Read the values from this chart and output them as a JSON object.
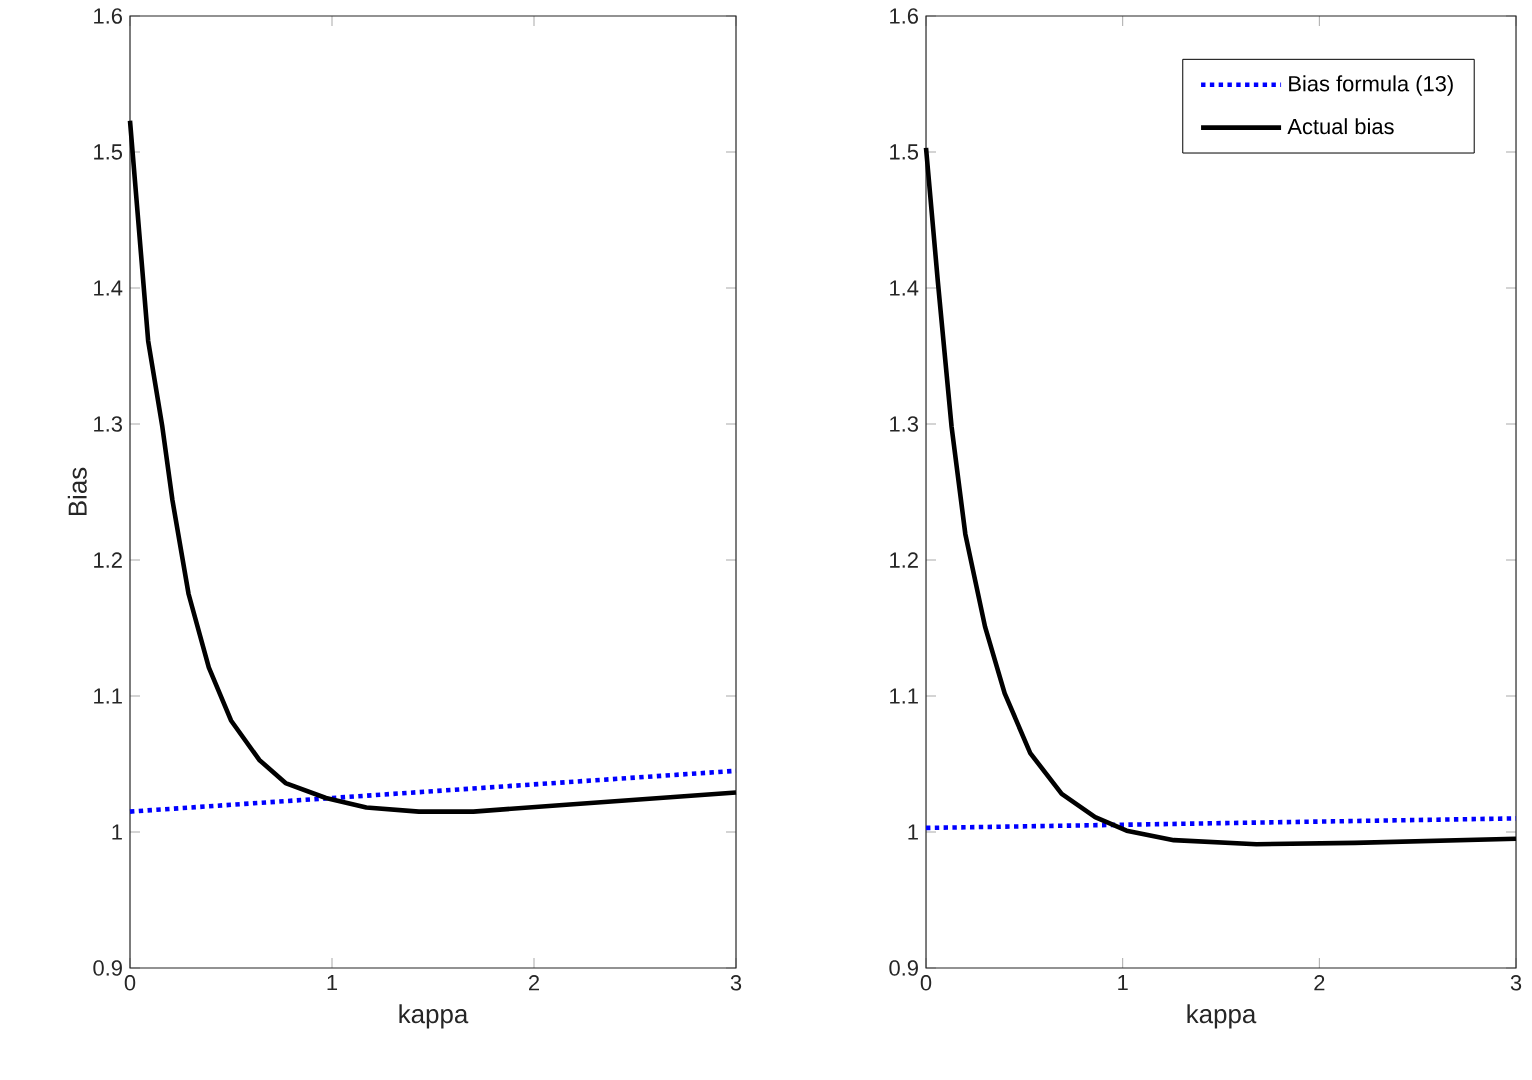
{
  "chart_data": [
    {
      "type": "line",
      "xlabel": "kappa",
      "ylabel": "Bias",
      "xlim": [
        0,
        3
      ],
      "ylim": [
        0.9,
        1.6
      ],
      "xticks": [
        0,
        1,
        2,
        3
      ],
      "yticks": [
        0.9,
        1,
        1.1,
        1.2,
        1.3,
        1.4,
        1.5,
        1.6
      ],
      "grid": false,
      "legend": false,
      "series": [
        {
          "color": "#0000ff",
          "line_style": "dotted",
          "x": [
            0,
            3
          ],
          "values": [
            1.015,
            1.045
          ]
        },
        {
          "color": "#000000",
          "line_style": "solid",
          "x": [
            0,
            0.09,
            0.16,
            0.21,
            0.29,
            0.39,
            0.5,
            0.64,
            0.77,
            0.97,
            1.17,
            1.43,
            1.7,
            2.16,
            3
          ],
          "values": [
            1.523,
            1.361,
            1.298,
            1.244,
            1.175,
            1.121,
            1.082,
            1.053,
            1.036,
            1.025,
            1.018,
            1.015,
            1.015,
            1.02,
            1.029
          ]
        }
      ]
    },
    {
      "type": "line",
      "xlabel": "kappa",
      "xlim": [
        0,
        3
      ],
      "ylim": [
        0.9,
        1.6
      ],
      "xticks": [
        0,
        1,
        2,
        3
      ],
      "yticks": [
        0.9,
        1,
        1.1,
        1.2,
        1.3,
        1.4,
        1.5,
        1.6
      ],
      "grid": false,
      "legend": "top right",
      "series": [
        {
          "name": "Bias formula (13)",
          "color": "#0000ff",
          "line_style": "dotted",
          "x": [
            0,
            3
          ],
          "values": [
            1.003,
            1.01
          ]
        },
        {
          "name": "Actual bias",
          "color": "#000000",
          "line_style": "solid",
          "x": [
            0,
            0.06,
            0.13,
            0.2,
            0.3,
            0.4,
            0.53,
            0.69,
            0.86,
            1.02,
            1.26,
            1.68,
            2.18,
            3
          ],
          "values": [
            1.503,
            1.405,
            1.298,
            1.219,
            1.151,
            1.102,
            1.058,
            1.028,
            1.011,
            1.001,
            0.994,
            0.991,
            0.992,
            0.995
          ]
        }
      ]
    }
  ]
}
